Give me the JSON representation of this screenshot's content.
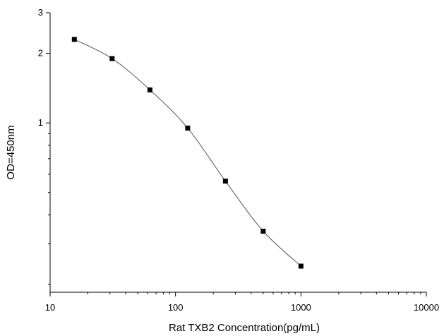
{
  "chart_data": {
    "type": "line",
    "xlabel": "Rat TXB2 Concentration(pg/mL)",
    "ylabel": "OD=450nm",
    "x_scale": "log",
    "y_scale": "log",
    "xlim": [
      10,
      10000
    ],
    "ylim": [
      0.185,
      3
    ],
    "x_ticks": [
      10,
      100,
      1000,
      10000
    ],
    "x_tick_labels": [
      "10",
      "100",
      "1000",
      "10000"
    ],
    "y_ticks": [
      1,
      2,
      3
    ],
    "y_tick_labels": [
      "1",
      "2",
      "3"
    ],
    "grid": false,
    "legend": "none",
    "series": [
      {
        "x": [
          15.6,
          31.2,
          62.5,
          125,
          250,
          500,
          1000
        ],
        "y": [
          2.3,
          1.9,
          1.39,
          0.95,
          0.56,
          0.34,
          0.24
        ],
        "marker": "square",
        "color": "#000000",
        "line_color": "#555555"
      }
    ]
  }
}
